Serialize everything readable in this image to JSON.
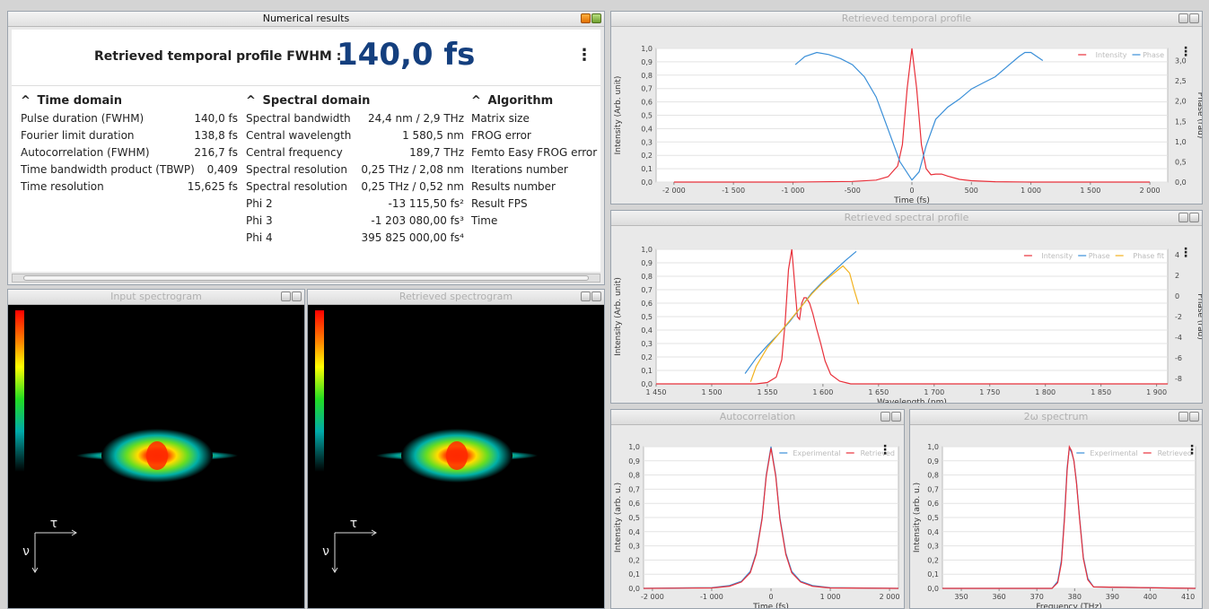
{
  "panels": {
    "numerical": "Numerical results",
    "temporal": "Retrieved temporal profile",
    "spectral": "Retrieved spectral profile",
    "input_spec": "Input spectrogram",
    "retr_spec": "Retrieved spectrogram",
    "autocorr": "Autocorrelation",
    "two_omega": "2ω spectrum"
  },
  "header": {
    "label": "Retrieved temporal profile FWHM :",
    "value": "140,0 fs"
  },
  "time_domain": {
    "title": "Time domain",
    "rows": [
      {
        "label": "Pulse duration (FWHM)",
        "value": "140,0 fs"
      },
      {
        "label": "Fourier limit duration",
        "value": "138,8 fs"
      },
      {
        "label": "Autocorrelation (FWHM)",
        "value": "216,7 fs"
      },
      {
        "label": "Time bandwidth product (TBWP)",
        "value": "0,409"
      },
      {
        "label": "Time resolution",
        "value": "15,625 fs"
      }
    ]
  },
  "spectral_domain": {
    "title": "Spectral domain",
    "rows": [
      {
        "label": "Spectral bandwidth",
        "value": "24,4 nm / 2,9 THz"
      },
      {
        "label": "Central wavelength",
        "value": "1 580,5 nm"
      },
      {
        "label": "Central frequency",
        "value": "189,7 THz"
      },
      {
        "label": "Spectral resolution",
        "value": "0,25 THz / 2,08 nm"
      },
      {
        "label": "Spectral resolution",
        "value": "0,25 THz / 0,52 nm"
      },
      {
        "label": "Phi 2",
        "value": "-13 115,50 fs²"
      },
      {
        "label": "Phi 3",
        "value": "-1 203 080,00 fs³"
      },
      {
        "label": "Phi 4",
        "value": "395 825 000,00 fs⁴"
      }
    ]
  },
  "algorithm": {
    "title": "Algorithm",
    "rows": [
      "Matrix size",
      "FROG error",
      "Femto Easy FROG error",
      "Iterations number",
      "Results number",
      "Result FPS",
      "Time"
    ]
  },
  "spectrogram_axes": {
    "tau": "τ",
    "nu": "ν"
  },
  "colors": {
    "intensity": "#e8303a",
    "phase": "#3a8fd8",
    "phase_fit": "#f2b21e",
    "title_blue": "#143f7e"
  },
  "chart_data": [
    {
      "id": "temporal",
      "type": "line",
      "xlabel": "Time (fs)",
      "ylabel": "Intensity (Arb. unit)",
      "y2label": "Phase (rad)",
      "xlim": [
        -2150,
        2150
      ],
      "ylim": [
        0,
        1.0
      ],
      "y2lim": [
        0,
        3.3
      ],
      "xticks": [
        -2000,
        -1500,
        -1000,
        -500,
        0,
        500,
        1000,
        1500,
        2000
      ],
      "xtick_labels": [
        "-2 000",
        "-1 500",
        "-1 000",
        "-500",
        "0",
        "500",
        "1 000",
        "1 500",
        "2 000"
      ],
      "yticks": [
        0,
        0.1,
        0.2,
        0.3,
        0.4,
        0.5,
        0.6,
        0.7,
        0.8,
        0.9,
        1.0
      ],
      "ytick_labels": [
        "0,0",
        "0,1",
        "0,2",
        "0,3",
        "0,4",
        "0,5",
        "0,6",
        "0,7",
        "0,8",
        "0,9",
        "1,0"
      ],
      "y2ticks": [
        0,
        0.5,
        1.0,
        1.5,
        2.0,
        2.5,
        3.0
      ],
      "y2tick_labels": [
        "0,0",
        "0,5",
        "1,0",
        "1,5",
        "2,0",
        "2,5",
        "3,0"
      ],
      "legend": [
        {
          "name": "Intensity",
          "color": "#e8303a"
        },
        {
          "name": "Phase",
          "color": "#3a8fd8"
        }
      ],
      "series": [
        {
          "name": "Intensity",
          "axis": "y",
          "color": "#e8303a",
          "x": [
            -2000,
            -1000,
            -500,
            -300,
            -200,
            -120,
            -80,
            -40,
            0,
            40,
            80,
            120,
            160,
            200,
            250,
            300,
            400,
            500,
            700,
            1000,
            2000
          ],
          "y": [
            0,
            0,
            0.005,
            0.015,
            0.04,
            0.12,
            0.28,
            0.7,
            1.0,
            0.7,
            0.28,
            0.1,
            0.055,
            0.06,
            0.06,
            0.045,
            0.02,
            0.01,
            0.003,
            0,
            0
          ]
        },
        {
          "name": "Phase",
          "axis": "y2",
          "color": "#3a8fd8",
          "x": [
            -980,
            -900,
            -800,
            -700,
            -600,
            -500,
            -400,
            -300,
            -200,
            -100,
            0,
            60,
            120,
            200,
            300,
            400,
            500,
            600,
            700,
            800,
            900,
            950,
            1000,
            1100
          ],
          "y": [
            2.9,
            3.1,
            3.2,
            3.15,
            3.05,
            2.9,
            2.6,
            2.1,
            1.3,
            0.5,
            0.05,
            0.25,
            0.9,
            1.55,
            1.85,
            2.05,
            2.3,
            2.45,
            2.6,
            2.85,
            3.1,
            3.2,
            3.2,
            3.0
          ]
        }
      ]
    },
    {
      "id": "spectral",
      "type": "line",
      "xlabel": "Wavelength (nm)",
      "ylabel": "Intensity (Arb. unit)",
      "y2label": "Phase (rad)",
      "xlim": [
        1450,
        1910
      ],
      "ylim": [
        0,
        1.0
      ],
      "y2lim": [
        -8.5,
        4.5
      ],
      "xticks": [
        1450,
        1500,
        1550,
        1600,
        1650,
        1700,
        1750,
        1800,
        1850,
        1900
      ],
      "xtick_labels": [
        "1 450",
        "1 500",
        "1 550",
        "1 600",
        "1 650",
        "1 700",
        "1 750",
        "1 800",
        "1 850",
        "1 900"
      ],
      "yticks": [
        0,
        0.1,
        0.2,
        0.3,
        0.4,
        0.5,
        0.6,
        0.7,
        0.8,
        0.9,
        1.0
      ],
      "ytick_labels": [
        "0,0",
        "0,1",
        "0,2",
        "0,3",
        "0,4",
        "0,5",
        "0,6",
        "0,7",
        "0,8",
        "0,9",
        "1,0"
      ],
      "y2ticks": [
        -8,
        -6,
        -4,
        -2,
        0,
        2,
        4
      ],
      "y2tick_labels": [
        "-8",
        "-6",
        "-4",
        "-2",
        "0",
        "2",
        "4"
      ],
      "legend": [
        {
          "name": "Intensity",
          "color": "#e8303a"
        },
        {
          "name": "Phase",
          "color": "#3a8fd8"
        },
        {
          "name": "Phase fit",
          "color": "#f2b21e"
        }
      ],
      "series": [
        {
          "name": "Intensity",
          "axis": "y",
          "color": "#e8303a",
          "x": [
            1450,
            1540,
            1550,
            1558,
            1563,
            1566,
            1569,
            1572,
            1575,
            1577,
            1579,
            1581,
            1583,
            1585,
            1588,
            1591,
            1594,
            1598,
            1602,
            1607,
            1615,
            1625,
            1700,
            1910
          ],
          "y": [
            0,
            0,
            0.01,
            0.05,
            0.18,
            0.45,
            0.85,
            1.0,
            0.7,
            0.5,
            0.48,
            0.6,
            0.64,
            0.64,
            0.6,
            0.52,
            0.42,
            0.3,
            0.17,
            0.07,
            0.02,
            0,
            0,
            0
          ]
        },
        {
          "name": "Phase",
          "axis": "y2",
          "color": "#3a8fd8",
          "x": [
            1530,
            1540,
            1550,
            1560,
            1570,
            1580,
            1590,
            1600,
            1610,
            1620,
            1630
          ],
          "y": [
            -7.5,
            -6.0,
            -4.8,
            -3.7,
            -2.5,
            -1.1,
            0.3,
            1.4,
            2.4,
            3.4,
            4.3
          ]
        },
        {
          "name": "Phase fit",
          "axis": "y2",
          "color": "#f2b21e",
          "x": [
            1535,
            1540,
            1550,
            1560,
            1570,
            1580,
            1590,
            1600,
            1610,
            1618,
            1624,
            1628,
            1632
          ],
          "y": [
            -8.3,
            -6.8,
            -5.0,
            -3.7,
            -2.4,
            -1.1,
            0.2,
            1.3,
            2.2,
            2.9,
            2.2,
            0.6,
            -0.8
          ]
        }
      ]
    },
    {
      "id": "autocorr",
      "type": "line",
      "xlabel": "Time (fs)",
      "ylabel": "Intensity (arb. u.)",
      "xlim": [
        -2150,
        2150
      ],
      "ylim": [
        0,
        1.0
      ],
      "xticks": [
        -2000,
        -1000,
        0,
        1000,
        2000
      ],
      "xtick_labels": [
        "-2 000",
        "-1 000",
        "0",
        "1 000",
        "2 000"
      ],
      "yticks": [
        0,
        0.1,
        0.2,
        0.3,
        0.4,
        0.5,
        0.6,
        0.7,
        0.8,
        0.9,
        1.0
      ],
      "ytick_labels": [
        "0,0",
        "0,1",
        "0,2",
        "0,3",
        "0,4",
        "0,5",
        "0,6",
        "0,7",
        "0,8",
        "0,9",
        "1,0"
      ],
      "legend": [
        {
          "name": "Experimental",
          "color": "#3a8fd8"
        },
        {
          "name": "Retrieved",
          "color": "#e8303a"
        }
      ],
      "series": [
        {
          "name": "Experimental",
          "axis": "y",
          "color": "#3a8fd8",
          "x": [
            -2150,
            -1000,
            -700,
            -500,
            -350,
            -250,
            -150,
            -80,
            0,
            80,
            150,
            250,
            350,
            500,
            700,
            1000,
            2150
          ],
          "y": [
            0,
            0.005,
            0.02,
            0.05,
            0.12,
            0.25,
            0.5,
            0.8,
            1.0,
            0.8,
            0.5,
            0.25,
            0.12,
            0.05,
            0.02,
            0.005,
            0
          ]
        },
        {
          "name": "Retrieved",
          "axis": "y",
          "color": "#e8303a",
          "x": [
            -2150,
            -1000,
            -700,
            -500,
            -350,
            -250,
            -150,
            -80,
            0,
            80,
            150,
            250,
            350,
            500,
            700,
            1000,
            2150
          ],
          "y": [
            0,
            0.003,
            0.015,
            0.045,
            0.11,
            0.24,
            0.49,
            0.79,
            0.99,
            0.79,
            0.49,
            0.24,
            0.11,
            0.045,
            0.015,
            0.003,
            0
          ]
        }
      ]
    },
    {
      "id": "two_omega",
      "type": "line",
      "xlabel": "Frequency (THz)",
      "ylabel": "Intensity (arb. u.)",
      "xlim": [
        345,
        412
      ],
      "ylim": [
        0,
        1.0
      ],
      "xticks": [
        350,
        360,
        370,
        380,
        390,
        400,
        410
      ],
      "xtick_labels": [
        "350",
        "360",
        "370",
        "380",
        "390",
        "400",
        "410"
      ],
      "yticks": [
        0,
        0.1,
        0.2,
        0.3,
        0.4,
        0.5,
        0.6,
        0.7,
        0.8,
        0.9,
        1.0
      ],
      "ytick_labels": [
        "0,0",
        "0,1",
        "0,2",
        "0,3",
        "0,4",
        "0,5",
        "0,6",
        "0,7",
        "0,8",
        "0,9",
        "1,0"
      ],
      "legend": [
        {
          "name": "Experimental",
          "color": "#3a8fd8"
        },
        {
          "name": "Retrieved",
          "color": "#e8303a"
        }
      ],
      "series": [
        {
          "name": "Experimental",
          "axis": "y",
          "color": "#3a8fd8",
          "x": [
            345,
            374,
            375.5,
            376.5,
            377.3,
            378,
            378.6,
            379.2,
            379.8,
            380.5,
            381.3,
            382.3,
            383.5,
            385,
            412
          ],
          "y": [
            0,
            0,
            0.05,
            0.2,
            0.5,
            0.85,
            0.99,
            0.96,
            0.9,
            0.75,
            0.5,
            0.22,
            0.07,
            0.01,
            0
          ]
        },
        {
          "name": "Retrieved",
          "axis": "y",
          "color": "#e8303a",
          "x": [
            345,
            374,
            375.5,
            376.5,
            377.3,
            378,
            378.6,
            379.2,
            379.8,
            380.5,
            381.3,
            382.3,
            383.5,
            385,
            412
          ],
          "y": [
            0,
            0,
            0.04,
            0.18,
            0.48,
            0.83,
            1.0,
            0.97,
            0.9,
            0.74,
            0.49,
            0.21,
            0.06,
            0.01,
            0
          ]
        }
      ]
    }
  ]
}
